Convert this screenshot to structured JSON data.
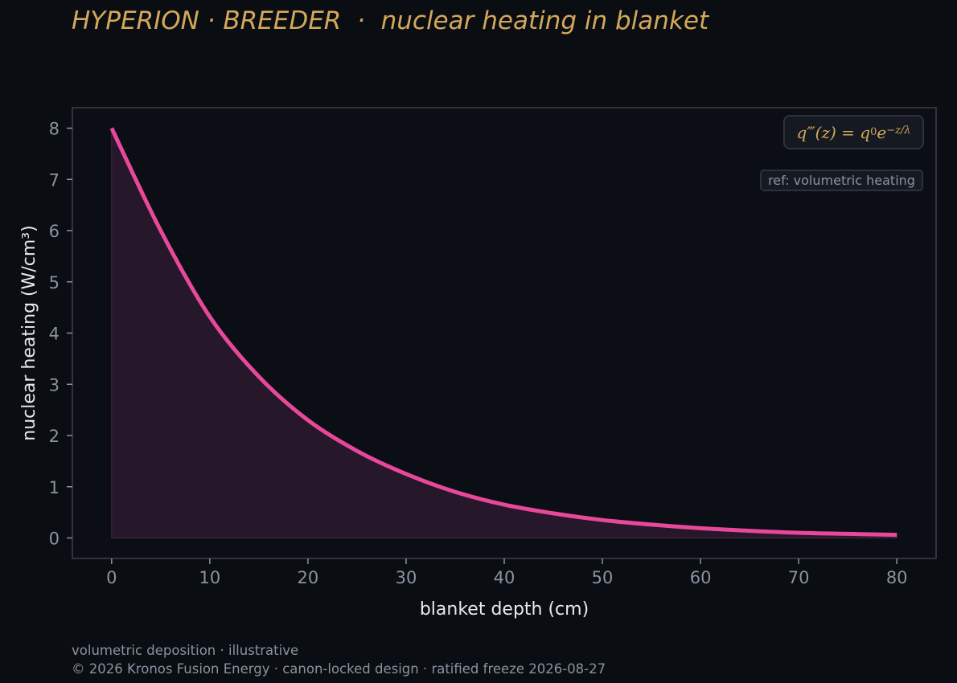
{
  "title": "HYPERION · BREEDER  ·  nuclear heating in blanket",
  "annotations": {
    "formula_lhs": "q‴(z) = q",
    "formula_sub": "0",
    "formula_e": "e",
    "formula_exp": "−z/λ",
    "ref": "ref: volumetric heating"
  },
  "footer": {
    "line1": "volumetric deposition · illustrative",
    "line2": "© 2026 Kronos Fusion Energy · canon-locked design · ratified freeze 2026-08-27"
  },
  "colors": {
    "background": "#0a0d12",
    "plot_background": "#0b0e15",
    "curve": "#e8489a",
    "fill": "#27172a",
    "title": "#d4a85a"
  },
  "chart_data": {
    "type": "area",
    "xlabel": "blanket depth (cm)",
    "ylabel": "nuclear heating (W/cm³)",
    "xlim": [
      -4,
      84
    ],
    "ylim": [
      -0.4,
      8.4
    ],
    "xticks": [
      0,
      10,
      20,
      30,
      40,
      50,
      60,
      70,
      80
    ],
    "yticks": [
      0,
      1,
      2,
      3,
      4,
      5,
      6,
      7,
      8
    ],
    "grid": false,
    "series": [
      {
        "x": [
          0,
          5,
          10,
          15,
          20,
          25,
          30,
          35,
          40,
          45,
          50,
          55,
          60,
          65,
          70,
          75,
          80
        ],
        "y": [
          8.0,
          6.0,
          4.32,
          3.15,
          2.3,
          1.7,
          1.25,
          0.9,
          0.65,
          0.48,
          0.35,
          0.26,
          0.19,
          0.14,
          0.1,
          0.08,
          0.06
        ]
      }
    ]
  }
}
